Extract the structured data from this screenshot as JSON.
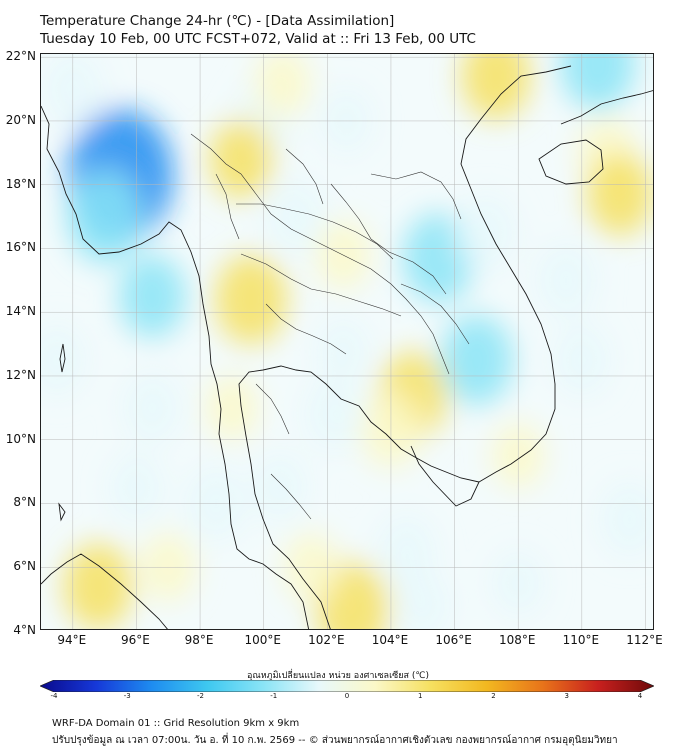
{
  "header": {
    "title": "Temperature Change 24-hr (℃) - [Data Assimilation]",
    "subtitle": "Tuesday 10 Feb, 00 UTC FCST+072, Valid at :: Fri 13 Feb, 00 UTC"
  },
  "map": {
    "lat_labels": [
      "22°N",
      "20°N",
      "18°N",
      "16°N",
      "14°N",
      "12°N",
      "10°N",
      "8°N",
      "6°N",
      "4°N"
    ],
    "lon_labels": [
      "94°E",
      "96°E",
      "98°E",
      "100°E",
      "102°E",
      "104°E",
      "106°E",
      "108°E",
      "110°E",
      "112°E"
    ],
    "lat_range": [
      4,
      22.1
    ],
    "lon_range": [
      93,
      112.3
    ],
    "background_color": "#f3fbfc",
    "anomalies": [
      {
        "lon": 95.5,
        "lat": 18.3,
        "value": -2.2
      },
      {
        "lon": 95.0,
        "lat": 17.0,
        "value": -1.1
      },
      {
        "lon": 96.5,
        "lat": 14.5,
        "value": -0.8
      },
      {
        "lon": 94.0,
        "lat": 21.0,
        "value": -0.6
      },
      {
        "lon": 93.5,
        "lat": 12.5,
        "value": -0.5
      },
      {
        "lon": 100.0,
        "lat": 20.0,
        "value": -0.5
      },
      {
        "lon": 99.3,
        "lat": 18.8,
        "value": 0.7
      },
      {
        "lon": 99.6,
        "lat": 14.4,
        "value": 1.0
      },
      {
        "lon": 102.5,
        "lat": 15.8,
        "value": 0.4
      },
      {
        "lon": 101.0,
        "lat": 17.0,
        "value": -0.6
      },
      {
        "lon": 105.5,
        "lat": 15.7,
        "value": -1.0
      },
      {
        "lon": 107.0,
        "lat": 16.5,
        "value": -0.6
      },
      {
        "lon": 106.7,
        "lat": 12.5,
        "value": -1.0
      },
      {
        "lon": 104.7,
        "lat": 11.4,
        "value": 0.9
      },
      {
        "lon": 104.0,
        "lat": 10.3,
        "value": 0.6
      },
      {
        "lon": 102.5,
        "lat": 12.8,
        "value": -0.3
      },
      {
        "lon": 102.2,
        "lat": 10.8,
        "value": -0.5
      },
      {
        "lon": 100.6,
        "lat": 21.2,
        "value": 0.4
      },
      {
        "lon": 102.6,
        "lat": 20.0,
        "value": -0.3
      },
      {
        "lon": 107.3,
        "lat": 21.4,
        "value": 0.9
      },
      {
        "lon": 110.5,
        "lat": 21.8,
        "value": -1.1
      },
      {
        "lon": 110.8,
        "lat": 19.0,
        "value": 0.5
      },
      {
        "lon": 111.2,
        "lat": 17.7,
        "value": 0.8
      },
      {
        "lon": 109.5,
        "lat": 15.0,
        "value": -0.6
      },
      {
        "lon": 110.0,
        "lat": 12.5,
        "value": -0.5
      },
      {
        "lon": 108.0,
        "lat": 9.5,
        "value": 0.3
      },
      {
        "lon": 111.5,
        "lat": 7.5,
        "value": -0.6
      },
      {
        "lon": 94.8,
        "lat": 5.4,
        "value": 0.9
      },
      {
        "lon": 97.0,
        "lat": 6.0,
        "value": 0.4
      },
      {
        "lon": 102.8,
        "lat": 4.7,
        "value": 1.1
      },
      {
        "lon": 101.5,
        "lat": 6.0,
        "value": 0.4
      },
      {
        "lon": 104.5,
        "lat": 6.5,
        "value": -0.5
      },
      {
        "lon": 98.5,
        "lat": 8.0,
        "value": -0.6
      },
      {
        "lon": 96.0,
        "lat": 8.5,
        "value": -0.4
      },
      {
        "lon": 100.5,
        "lat": 8.5,
        "value": -0.4
      },
      {
        "lon": 96.5,
        "lat": 11.0,
        "value": -0.5
      },
      {
        "lon": 105.0,
        "lat": 4.8,
        "value": -0.4
      },
      {
        "lon": 108.0,
        "lat": 5.5,
        "value": -0.3
      },
      {
        "lon": 99.0,
        "lat": 11.0,
        "value": 0.3
      }
    ]
  },
  "colorbar": {
    "label": "อุณหภูมิเปลี่ยนแปลง หน่วย องศาเซลเซียส (℃)",
    "min": -4,
    "max": 4,
    "ticks": [
      "-4",
      "-3",
      "-2",
      "-1",
      "0",
      "1",
      "2",
      "3",
      "4"
    ],
    "colors": [
      "#0a0a8c",
      "#1638d8",
      "#1e8cf0",
      "#3ec8f0",
      "#8ae4f6",
      "#e8f8fb",
      "#fbf8c8",
      "#f6e060",
      "#f2b820",
      "#e8741a",
      "#c8201e",
      "#6e0a0a"
    ]
  },
  "footer": {
    "line1": "WRF-DA Domain 01 :: Grid Resolution 9km x 9km",
    "line2": "ปรับปรุงข้อมูล ณ เวลา 07:00น. วัน อ. ที่ 10 ก.พ. 2569 -- © ส่วนพยากรณ์อากาศเชิงตัวเลข กองพยากรณ์อากาศ กรมอุตุนิยมวิทยา"
  }
}
